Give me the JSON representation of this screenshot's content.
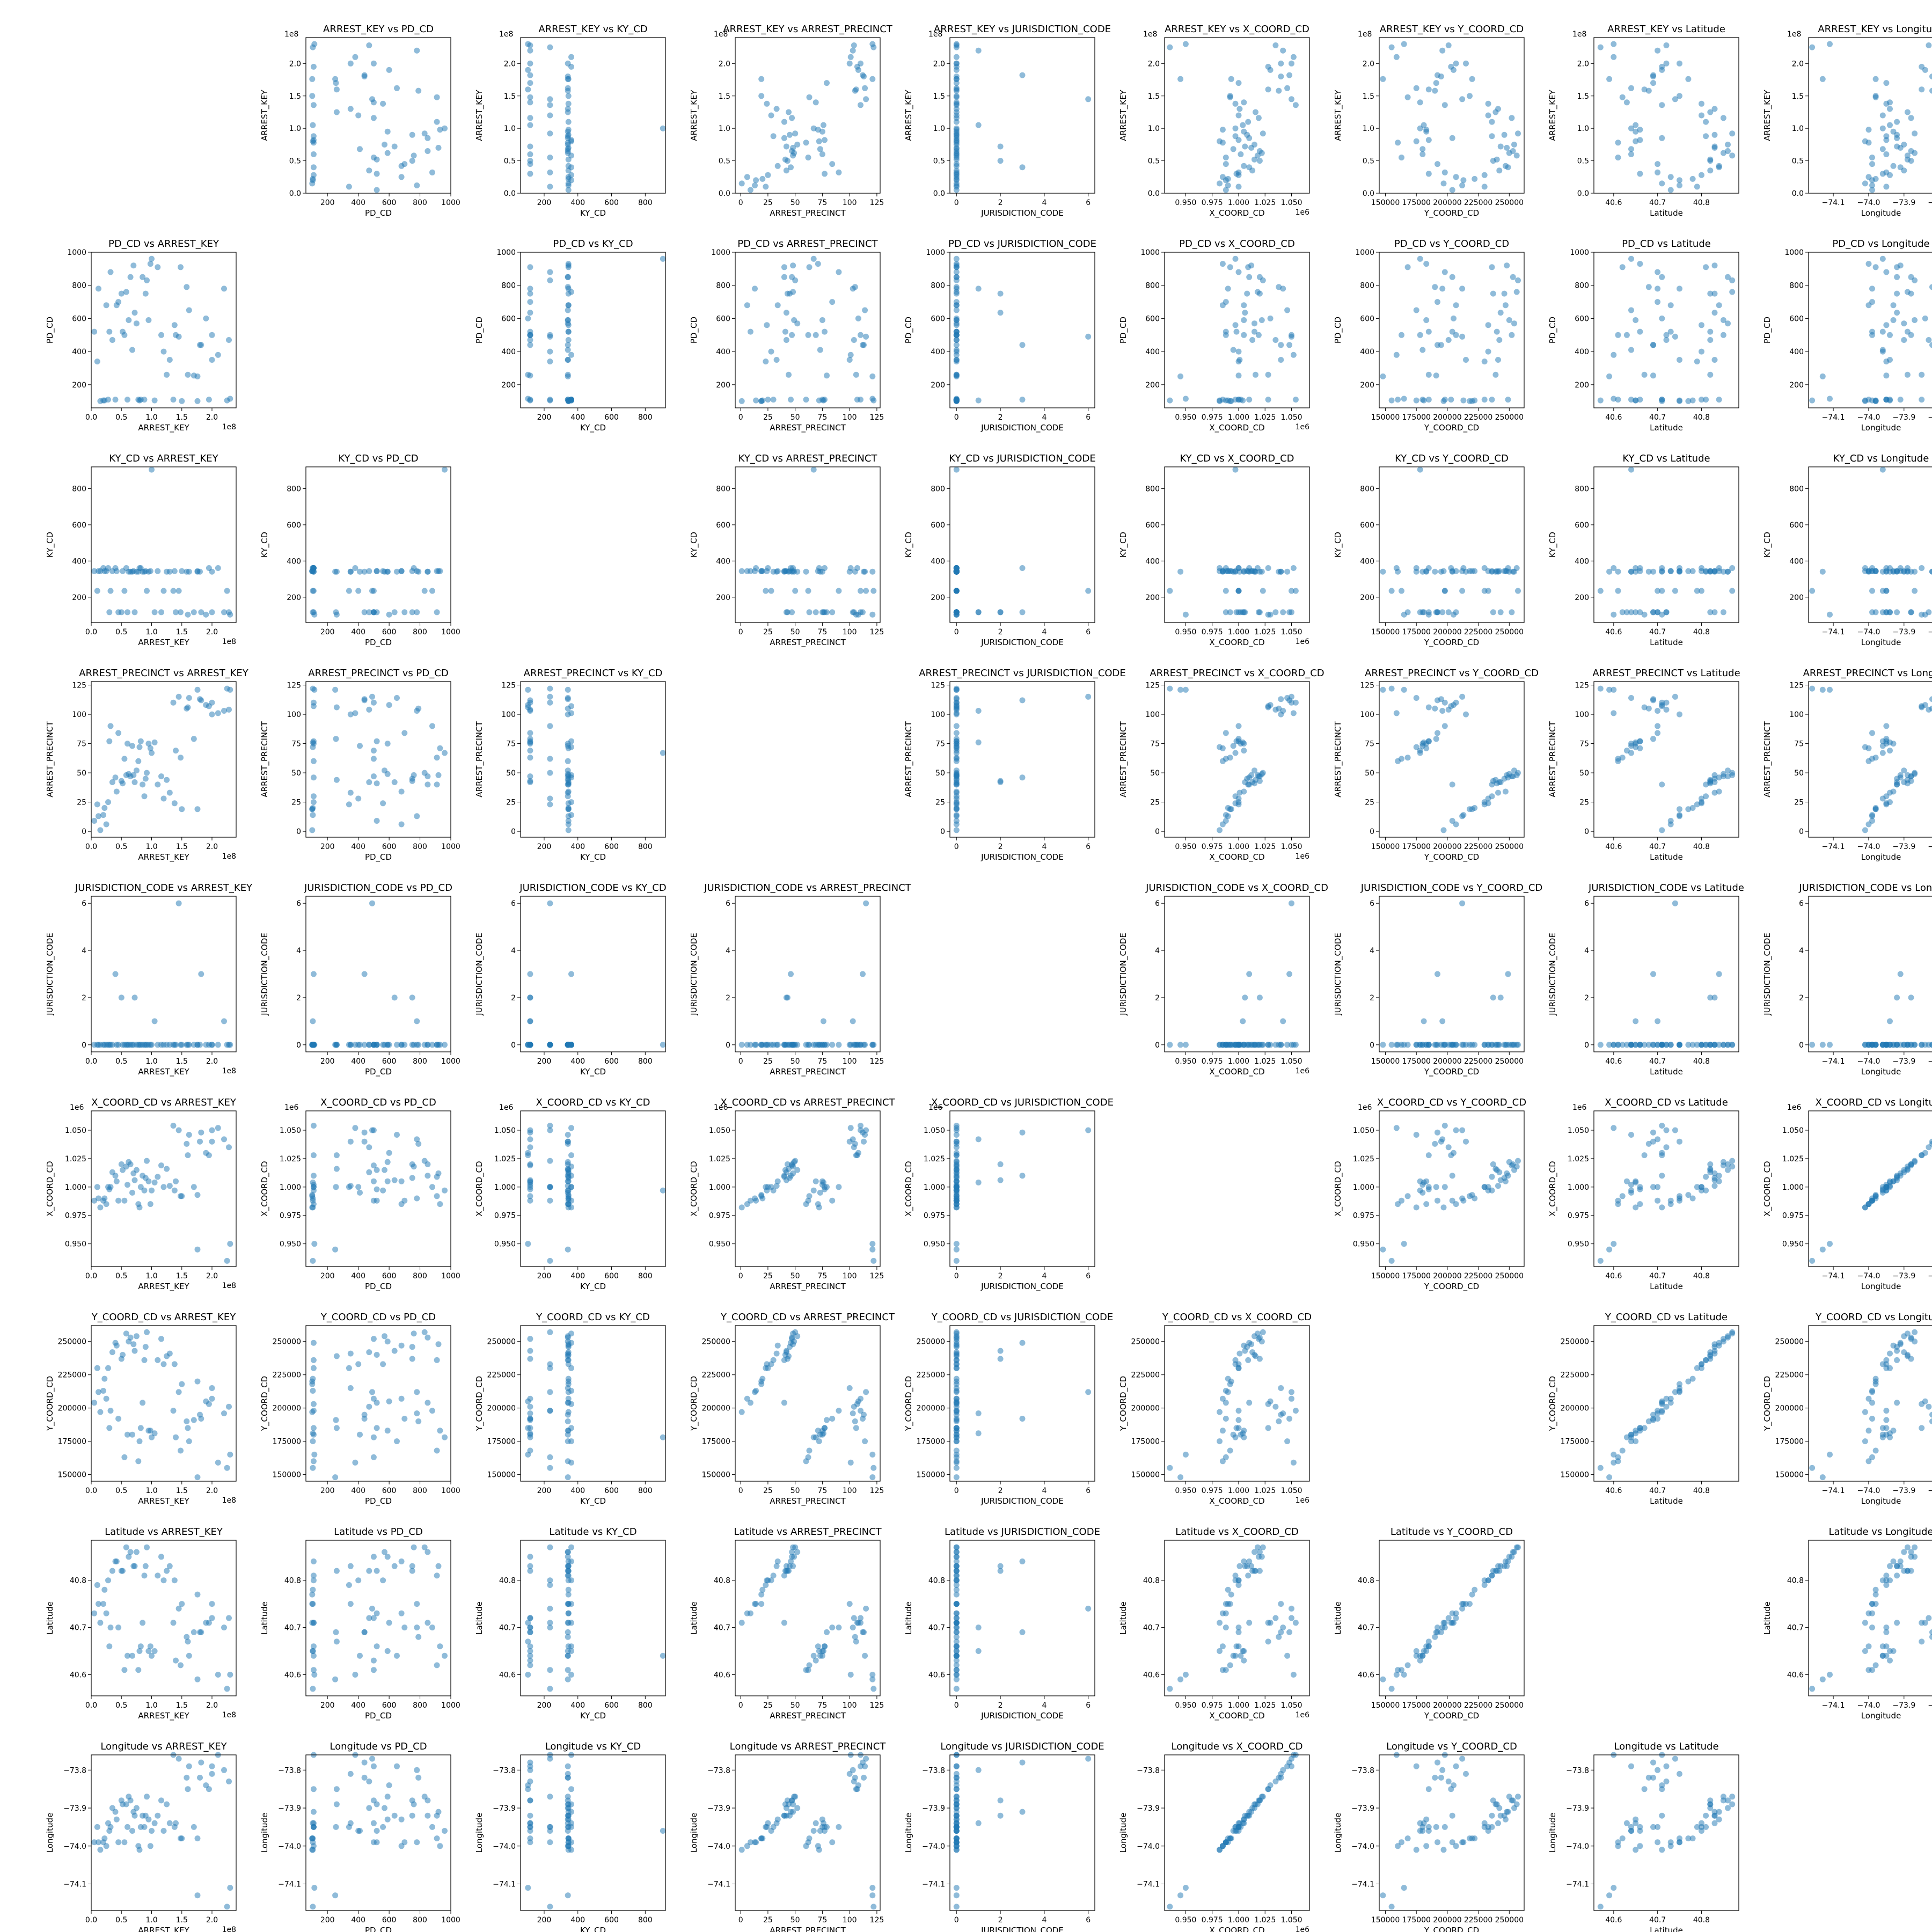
{
  "variables": [
    {
      "name": "ARREST_KEY",
      "range": [
        0,
        240000000
      ],
      "ticks": [
        0,
        50000000,
        100000000,
        150000000,
        200000000
      ],
      "tick_labels": [
        "0.0",
        "0.5",
        "1.0",
        "1.5",
        "2.0"
      ],
      "offset": "1e8"
    },
    {
      "name": "PD_CD",
      "range": [
        60,
        1000
      ],
      "ticks": [
        200,
        400,
        600,
        800,
        1000
      ],
      "tick_labels": [
        "200",
        "400",
        "600",
        "800",
        "1000"
      ],
      "offset": ""
    },
    {
      "name": "KY_CD",
      "range": [
        60,
        920
      ],
      "ticks": [
        200,
        400,
        600,
        800
      ],
      "tick_labels": [
        "200",
        "400",
        "600",
        "800"
      ],
      "offset": ""
    },
    {
      "name": "ARREST_PRECINCT",
      "range": [
        -5,
        128
      ],
      "ticks": [
        0,
        25,
        50,
        75,
        100,
        125
      ],
      "tick_labels": [
        "0",
        "25",
        "50",
        "75",
        "100",
        "125"
      ],
      "offset": ""
    },
    {
      "name": "JURISDICTION_CODE",
      "range": [
        -0.3,
        6.3
      ],
      "ticks": [
        0,
        2,
        4,
        6
      ],
      "tick_labels": [
        "0",
        "2",
        "4",
        "6"
      ],
      "offset": ""
    },
    {
      "name": "X_COORD_CD",
      "range": [
        930000,
        1067000
      ],
      "ticks": [
        950000,
        975000,
        1000000,
        1025000,
        1050000
      ],
      "tick_labels": [
        "0.950",
        "0.975",
        "1.000",
        "1.025",
        "1.050"
      ],
      "offset": "1e6"
    },
    {
      "name": "Y_COORD_CD",
      "range": [
        145000,
        262000
      ],
      "ticks": [
        150000,
        175000,
        200000,
        225000,
        250000
      ],
      "tick_labels": [
        "150000",
        "175000",
        "200000",
        "225000",
        "250000"
      ],
      "offset": ""
    },
    {
      "name": "Latitude",
      "range": [
        40.555,
        40.885
      ],
      "ticks": [
        40.6,
        40.7,
        40.8
      ],
      "tick_labels": [
        "40.6",
        "40.7",
        "40.8"
      ],
      "offset": ""
    },
    {
      "name": "Longitude",
      "range": [
        -74.17,
        -73.76
      ],
      "ticks": [
        -74.1,
        -74.0,
        -73.9,
        -73.8
      ],
      "tick_labels": [
        "−74.1",
        "−74.0",
        "−73.9",
        "−73.8"
      ],
      "offset": ""
    }
  ],
  "chart_data": {
    "type": "scatter",
    "layout": "pairwise scatter matrix (row variable vs column variable, diagonal empty)",
    "point_color": "#1f77b4",
    "point_opacity": 0.5,
    "title_template": "{row} vs {col}",
    "records": [
      [
        85000000,
        850,
        341,
        40,
        0,
        1010000,
        204000,
        40.71,
        -73.92
      ],
      [
        30000000,
        520,
        117,
        77,
        0,
        998000,
        185000,
        40.66,
        -73.96
      ],
      [
        150000000,
        101,
        344,
        19,
        0,
        992000,
        218000,
        40.75,
        -73.98
      ],
      [
        60000000,
        110,
        117,
        75,
        0,
        1002000,
        180000,
        40.64,
        -73.95
      ],
      [
        200000000,
        500,
        117,
        110,
        0,
        1050000,
        207000,
        40.72,
        -73.79
      ],
      [
        10000000,
        340,
        235,
        23,
        0,
        1000000,
        230000,
        40.79,
        -73.95
      ],
      [
        95000000,
        590,
        341,
        75,
        0,
        1005000,
        183000,
        40.65,
        -73.93
      ],
      [
        176000000,
        101,
        344,
        19,
        0,
        993000,
        220000,
        40.77,
        -73.98
      ],
      [
        50000000,
        750,
        117,
        43,
        2,
        1020000,
        237000,
        40.82,
        -73.88
      ],
      [
        120000000,
        400,
        235,
        28,
        0,
        1000000,
        233000,
        40.8,
        -73.96
      ],
      [
        230000000,
        115,
        104,
        121,
        0,
        950000,
        165000,
        40.6,
        -74.11
      ],
      [
        70000000,
        920,
        344,
        48,
        0,
        1012000,
        248000,
        40.83,
        -73.91
      ],
      [
        20000000,
        105,
        361,
        14,
        0,
        988000,
        213000,
        40.75,
        -73.99
      ],
      [
        180000000,
        440,
        341,
        113,
        0,
        1040000,
        195000,
        40.69,
        -73.82
      ],
      [
        140000000,
        500,
        117,
        69,
        0,
        1005000,
        178000,
        40.63,
        -73.94
      ],
      [
        90000000,
        750,
        344,
        45,
        0,
        1008000,
        246000,
        40.83,
        -73.92
      ],
      [
        40000000,
        110,
        361,
        46,
        3,
        1010000,
        249000,
        40.84,
        -73.91
      ],
      [
        160000000,
        260,
        104,
        106,
        0,
        1028000,
        185000,
        40.67,
        -73.85
      ],
      [
        110000000,
        910,
        344,
        40,
        0,
        1009000,
        236000,
        40.81,
        -73.92
      ],
      [
        75000000,
        570,
        341,
        52,
        0,
        1015000,
        254000,
        40.86,
        -73.9
      ],
      [
        15000000,
        101,
        344,
        1,
        0,
        982000,
        197000,
        40.71,
        -74.01
      ],
      [
        220000000,
        780,
        117,
        103,
        1,
        1042000,
        196000,
        40.7,
        -73.8
      ],
      [
        55000000,
        500,
        235,
        62,
        0,
        988000,
        163000,
        40.61,
        -73.99
      ],
      [
        130000000,
        350,
        341,
        33,
        0,
        1001000,
        241000,
        40.83,
        -73.94
      ],
      [
        80000000,
        105,
        361,
        72,
        0,
        982000,
        175000,
        40.65,
        -74.01
      ],
      [
        190000000,
        600,
        104,
        108,
        0,
        1030000,
        205000,
        40.71,
        -73.84
      ],
      [
        35000000,
        470,
        344,
        42,
        0,
        1013000,
        242000,
        40.82,
        -73.9
      ],
      [
        100000000,
        960,
        905,
        67,
        0,
        997000,
        178000,
        40.64,
        -73.96
      ],
      [
        65000000,
        850,
        341,
        47,
        0,
        1020000,
        253000,
        40.86,
        -73.88
      ],
      [
        170000000,
        255,
        117,
        79,
        0,
        1000000,
        191000,
        40.69,
        -73.95
      ],
      [
        25000000,
        680,
        344,
        6,
        0,
        985000,
        207000,
        40.73,
        -74.0
      ],
      [
        145000000,
        490,
        235,
        115,
        6,
        1050000,
        212000,
        40.74,
        -73.77
      ],
      [
        88000000,
        110,
        341,
        30,
        0,
        997000,
        236000,
        40.81,
        -73.95
      ],
      [
        210000000,
        380,
        361,
        101,
        0,
        1052000,
        159000,
        40.6,
        -73.76
      ],
      [
        45000000,
        700,
        117,
        84,
        0,
        988000,
        192000,
        40.7,
        -73.99
      ],
      [
        125000000,
        260,
        341,
        44,
        0,
        1016000,
        239000,
        40.82,
        -73.89
      ],
      [
        5000000,
        520,
        344,
        9,
        0,
        988000,
        204000,
        40.73,
        -73.99
      ],
      [
        225000000,
        105,
        235,
        122,
        0,
        935000,
        155000,
        40.57,
        -74.16
      ],
      [
        72000000,
        635,
        117,
        42,
        2,
        1006000,
        243000,
        40.83,
        -73.92
      ],
      [
        158000000,
        790,
        341,
        105,
        0,
        1038000,
        190000,
        40.68,
        -73.82
      ],
      [
        28000000,
        110,
        361,
        25,
        0,
        1000000,
        230000,
        40.8,
        -73.94
      ],
      [
        98000000,
        930,
        344,
        71,
        0,
        985000,
        183000,
        40.66,
        -74.0
      ],
      [
        182000000,
        440,
        117,
        112,
        3,
        1048000,
        192000,
        40.69,
        -73.78
      ],
      [
        62000000,
        590,
        341,
        49,
        0,
        1022000,
        250000,
        40.85,
        -73.87
      ],
      [
        136000000,
        110,
        235,
        110,
        0,
        1054000,
        198000,
        40.71,
        -73.76
      ],
      [
        12000000,
        780,
        344,
        13,
        0,
        990000,
        212000,
        40.75,
        -73.99
      ],
      [
        200000000,
        350,
        341,
        100,
        0,
        1040000,
        215000,
        40.75,
        -73.81
      ],
      [
        82000000,
        110,
        361,
        77,
        0,
        1000000,
        185000,
        40.66,
        -73.95
      ],
      [
        116000000,
        500,
        117,
        47,
        0,
        1019000,
        252000,
        40.85,
        -73.88
      ],
      [
        42000000,
        680,
        344,
        34,
        0,
        1005000,
        247000,
        40.84,
        -73.93
      ],
      [
        176000000,
        250,
        341,
        121,
        0,
        945000,
        148000,
        40.59,
        -74.13
      ],
      [
        92000000,
        830,
        235,
        50,
        0,
        1023000,
        257000,
        40.87,
        -73.87
      ],
      [
        22000000,
        105,
        344,
        20,
        0,
        990000,
        222000,
        40.78,
        -73.98
      ],
      [
        148000000,
        910,
        117,
        63,
        0,
        992000,
        168000,
        40.62,
        -73.98
      ],
      [
        68000000,
        410,
        341,
        73,
        0,
        995000,
        180000,
        40.64,
        -73.96
      ],
      [
        195000000,
        110,
        361,
        107,
        0,
        1028000,
        203000,
        40.71,
        -73.85
      ],
      [
        52000000,
        520,
        344,
        41,
        0,
        1015000,
        240000,
        40.82,
        -73.89
      ],
      [
        162000000,
        650,
        341,
        114,
        0,
        1046000,
        175000,
        40.64,
        -73.79
      ],
      [
        105000000,
        105,
        117,
        76,
        1,
        1004000,
        181000,
        40.65,
        -73.94
      ],
      [
        32000000,
        880,
        235,
        90,
        0,
        1000000,
        198000,
        40.7,
        -73.95
      ],
      [
        138000000,
        560,
        344,
        24,
        0,
        997000,
        233000,
        40.8,
        -73.95
      ],
      [
        78000000,
        110,
        341,
        60,
        0,
        985000,
        160000,
        40.61,
        -74.0
      ],
      [
        228000000,
        470,
        117,
        104,
        0,
        1035000,
        201000,
        40.72,
        -73.83
      ],
      [
        58000000,
        760,
        361,
        48,
        0,
        1018000,
        256000,
        40.87,
        -73.89
      ]
    ]
  }
}
